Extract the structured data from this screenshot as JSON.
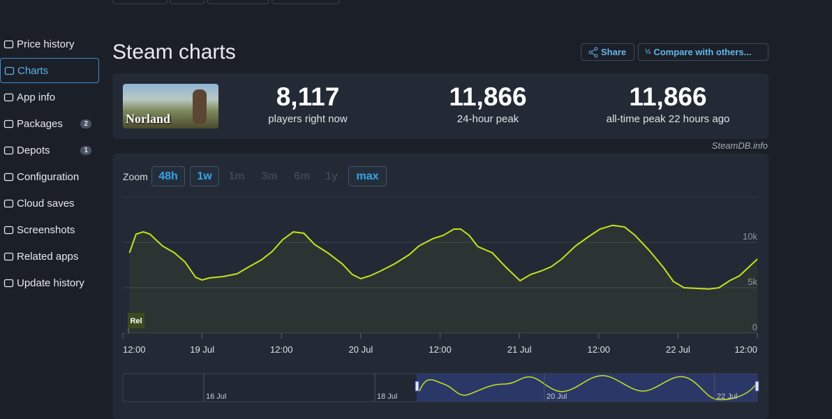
{
  "nav": {
    "items": [
      {
        "label": "Price history"
      },
      {
        "label": "Charts"
      },
      {
        "label": "App info"
      },
      {
        "label": "Packages",
        "badge": "2"
      },
      {
        "label": "Depots",
        "badge": "1"
      },
      {
        "label": "Configuration"
      },
      {
        "label": "Cloud saves"
      },
      {
        "label": "Screenshots"
      },
      {
        "label": "Related apps"
      },
      {
        "label": "Update history"
      }
    ]
  },
  "header": {
    "title": "Steam charts",
    "share": "Share",
    "compare": "Compare with others..."
  },
  "game": {
    "logo": "Norland"
  },
  "stats": [
    {
      "value": "8,117",
      "label": "players right now"
    },
    {
      "value": "11,866",
      "label": "24-hour peak"
    },
    {
      "value": "11,866",
      "label": "all-time peak 22 hours ago"
    }
  ],
  "credit": "SteamDB.info",
  "zoom": {
    "label": "Zoom",
    "options": [
      "48h",
      "1w",
      "1m",
      "3m",
      "6m",
      "1y",
      "max"
    ]
  },
  "chart_data": {
    "type": "line",
    "color": "#c6e11f",
    "grid": true,
    "annotation": "Rel",
    "x": [
      13,
      14,
      15.1,
      16.1,
      18,
      19.8,
      21.4,
      23,
      24,
      25.1,
      27.2,
      29.3,
      30.9,
      33,
      34.6,
      36.2,
      37.8,
      39.4,
      41,
      43,
      45.2,
      46.7,
      48,
      49.4,
      51,
      53.1,
      55.3,
      56.8,
      58.9,
      60.5,
      62.1,
      63.1,
      64.4,
      65.7,
      67.9,
      70,
      72.1,
      73.7,
      75.3,
      76.8,
      78.4,
      80.5,
      82.6,
      84.2,
      86.1,
      87.9,
      89.5,
      91.6,
      93.8,
      95.3,
      96.9,
      99,
      100.6,
      102.2,
      103.8,
      105.3,
      108
    ],
    "values": [
      8850,
      10900,
      11150,
      10900,
      9600,
      8850,
      7850,
      6150,
      5850,
      6080,
      6230,
      6540,
      7230,
      8080,
      9000,
      10300,
      11150,
      11000,
      9770,
      8850,
      7620,
      6460,
      6000,
      6310,
      6850,
      7620,
      8620,
      9600,
      10400,
      10770,
      11460,
      11460,
      10770,
      9540,
      8850,
      7230,
      5770,
      6460,
      6850,
      7310,
      8150,
      9600,
      10690,
      11460,
      11866,
      11690,
      10770,
      9150,
      7230,
      5690,
      5000,
      4920,
      4850,
      5000,
      5770,
      6310,
      8150
    ],
    "xlim": [
      12,
      108
    ],
    "xticks": [
      {
        "value": 12,
        "label": "12:00"
      },
      {
        "value": 24,
        "label": "19 Jul"
      },
      {
        "value": 36,
        "label": "12:00"
      },
      {
        "value": 48,
        "label": "20 Jul"
      },
      {
        "value": 60,
        "label": "12:00"
      },
      {
        "value": 72,
        "label": "21 Jul"
      },
      {
        "value": 84,
        "label": "12:00"
      },
      {
        "value": 96,
        "label": "22 Jul"
      },
      {
        "value": 108,
        "label": "12:00"
      }
    ],
    "ylim": [
      0,
      15000
    ],
    "yticks": [
      0,
      {
        "value": 5000,
        "label": "5k"
      },
      {
        "value": 10000,
        "label": "10k"
      }
    ],
    "navigator": [
      "16 Jul",
      "18 Jul",
      "20 Jul",
      "22 Jul"
    ]
  }
}
